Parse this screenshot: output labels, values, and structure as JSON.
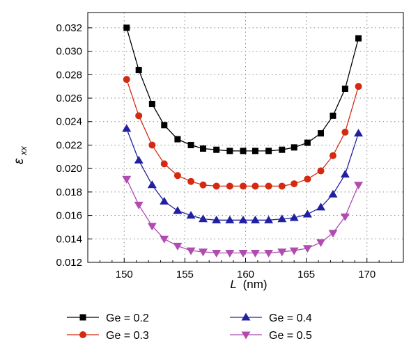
{
  "chart_data": {
    "type": "line",
    "title": "",
    "xlabel": "L (nm)",
    "xlabel_var": "L",
    "xlabel_unit": "(nm)",
    "ylabel": "ε_xx",
    "ylabel_main": "ε",
    "ylabel_sub": "xx",
    "xlim": [
      147,
      173
    ],
    "ylim": [
      0.012,
      0.0333
    ],
    "x_ticks": [
      150,
      155,
      160,
      165,
      170
    ],
    "x_tick_labels": [
      "150",
      "155",
      "160",
      "165",
      "170"
    ],
    "y_ticks": [
      0.012,
      0.014,
      0.016,
      0.018,
      0.02,
      0.022,
      0.024,
      0.026,
      0.028,
      0.03,
      0.032
    ],
    "y_tick_labels": [
      "0.012",
      "0.014",
      "0.016",
      "0.018",
      "0.020",
      "0.022",
      "0.024",
      "0.026",
      "0.028",
      "0.030",
      "0.032"
    ],
    "grid": true,
    "legend_position": "bottom",
    "x": [
      150.2,
      151.2,
      152.3,
      153.3,
      154.4,
      155.5,
      156.5,
      157.6,
      158.7,
      159.8,
      160.8,
      161.9,
      163.0,
      164.0,
      165.1,
      166.2,
      167.2,
      168.2,
      169.3
    ],
    "series": [
      {
        "name": "Ge = 0.2",
        "marker": "square",
        "line_color": "#000000",
        "marker_color": "#000000",
        "values": [
          0.032,
          0.0284,
          0.0255,
          0.0237,
          0.0225,
          0.022,
          0.0217,
          0.0216,
          0.0215,
          0.0215,
          0.0215,
          0.0215,
          0.0216,
          0.0218,
          0.0222,
          0.023,
          0.0245,
          0.0268,
          0.0311
        ]
      },
      {
        "name": "Ge = 0.3",
        "marker": "circle",
        "line_color": "#d42a12",
        "marker_color": "#d42a12",
        "values": [
          0.0276,
          0.0245,
          0.022,
          0.0204,
          0.0194,
          0.0189,
          0.0186,
          0.0185,
          0.0185,
          0.0185,
          0.0185,
          0.0185,
          0.0185,
          0.0187,
          0.0191,
          0.0198,
          0.0211,
          0.0231,
          0.027
        ]
      },
      {
        "name": "Ge = 0.4",
        "marker": "triangle-up",
        "line_color": "#2020a0",
        "marker_color": "#2020a0",
        "values": [
          0.0234,
          0.0207,
          0.0186,
          0.0172,
          0.0164,
          0.016,
          0.0157,
          0.0156,
          0.0156,
          0.0156,
          0.0156,
          0.0156,
          0.0157,
          0.0158,
          0.0161,
          0.0167,
          0.0178,
          0.0195,
          0.023
        ]
      },
      {
        "name": "Ge = 0.5",
        "marker": "triangle-down",
        "line_color": "#b04cb0",
        "marker_color": "#b04cb0",
        "values": [
          0.0191,
          0.0169,
          0.0151,
          0.014,
          0.0134,
          0.013,
          0.0129,
          0.0128,
          0.0128,
          0.0128,
          0.0128,
          0.0128,
          0.0129,
          0.013,
          0.0132,
          0.0137,
          0.0145,
          0.0159,
          0.0186
        ]
      }
    ]
  }
}
